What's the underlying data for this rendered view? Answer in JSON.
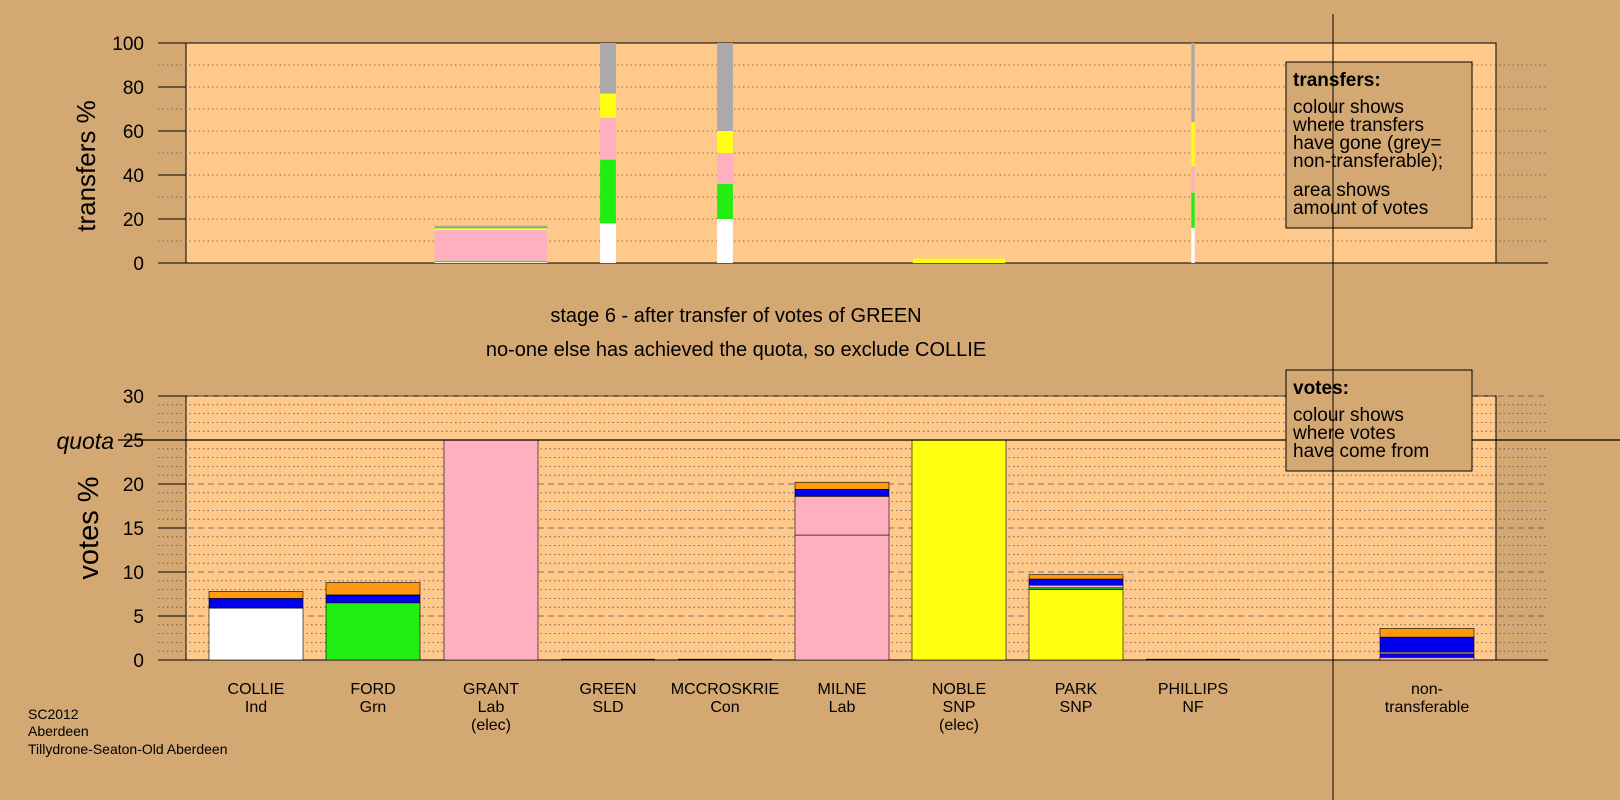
{
  "chart_data": [
    {
      "type": "bar",
      "stacked": true,
      "ylabel": "transfers %",
      "ylim": [
        0,
        100
      ],
      "yticks": [
        0,
        20,
        40,
        60,
        80,
        100
      ],
      "grid": "dotted",
      "legend": {
        "placement": "top-right",
        "title": "transfers:",
        "lines1": [
          "colour shows",
          "where transfers",
          "have gone (grey=",
          "non-transferable);"
        ],
        "lines2": [
          "area shows",
          "amount of votes"
        ]
      },
      "bars": [
        {
          "candidate": "GRANT",
          "width_share": 1.0,
          "segments": [
            {
              "color": "#ffffff",
              "value": 0.4
            },
            {
              "color": "#22ee11",
              "value": 0.6
            },
            {
              "color": "#ffb0c0",
              "value": 14.0
            },
            {
              "color": "#ffff11",
              "value": 0.8
            },
            {
              "color": "#22ee11",
              "value": 0.6
            },
            {
              "color": "#aaaaaa",
              "value": 0.6
            }
          ]
        },
        {
          "candidate": "GREEN",
          "width_share": 0.14,
          "segments": [
            {
              "color": "#ffffff",
              "value": 18
            },
            {
              "color": "#22ee11",
              "value": 29
            },
            {
              "color": "#ffb0c0",
              "value": 19
            },
            {
              "color": "#ffff11",
              "value": 11
            },
            {
              "color": "#aaaaaa",
              "value": 23
            }
          ]
        },
        {
          "candidate": "MCCROSKRIE",
          "width_share": 0.14,
          "segments": [
            {
              "color": "#ffffff",
              "value": 20
            },
            {
              "color": "#22ee11",
              "value": 16
            },
            {
              "color": "#ffb0c0",
              "value": 14
            },
            {
              "color": "#ffff11",
              "value": 10
            },
            {
              "color": "#aaaaaa",
              "value": 40
            }
          ]
        },
        {
          "candidate": "NOBLE",
          "width_share": 0.82,
          "segments": [
            {
              "color": "#ffff11",
              "value": 2.0
            }
          ]
        },
        {
          "candidate": "PHILLIPS",
          "width_share": 0.03,
          "segments": [
            {
              "color": "#ffffff",
              "value": 16
            },
            {
              "color": "#22ee11",
              "value": 16
            },
            {
              "color": "#ffb0c0",
              "value": 12
            },
            {
              "color": "#ffff11",
              "value": 20
            },
            {
              "color": "#aaaaaa",
              "value": 36
            }
          ]
        }
      ]
    },
    {
      "type": "bar",
      "stacked": true,
      "ylabel": "votes %",
      "ylim": [
        0,
        30
      ],
      "yticks": [
        0,
        5,
        10,
        15,
        20,
        25,
        30
      ],
      "quota": 25,
      "quota_label": "quota",
      "grid": "dashed",
      "legend": {
        "placement": "top-right",
        "title": "votes:",
        "lines1": [
          "colour shows",
          "where votes",
          "have come from"
        ]
      },
      "categories": [
        {
          "name": "COLLIE",
          "party": "Ind",
          "note": ""
        },
        {
          "name": "FORD",
          "party": "Grn",
          "note": ""
        },
        {
          "name": "GRANT",
          "party": "Lab",
          "note": "(elec)"
        },
        {
          "name": "GREEN",
          "party": "SLD",
          "note": ""
        },
        {
          "name": "MCCROSKRIE",
          "party": "Con",
          "note": ""
        },
        {
          "name": "MILNE",
          "party": "Lab",
          "note": ""
        },
        {
          "name": "NOBLE",
          "party": "SNP",
          "note": "(elec)"
        },
        {
          "name": "PARK",
          "party": "SNP",
          "note": ""
        },
        {
          "name": "PHILLIPS",
          "party": "NF",
          "note": ""
        },
        {
          "name": "non-",
          "party": "transferable",
          "note": ""
        }
      ],
      "series_stacks": [
        [
          {
            "color": "#ffffff",
            "value": 5.9
          },
          {
            "color": "#0000ee",
            "value": 1.1
          },
          {
            "color": "#ff9911",
            "value": 0.8
          }
        ],
        [
          {
            "color": "#22ee11",
            "value": 6.5
          },
          {
            "color": "#0000ee",
            "value": 0.9
          },
          {
            "color": "#ff9911",
            "value": 1.4
          }
        ],
        [
          {
            "color": "#ffb0c0",
            "value": 25.0
          }
        ],
        [],
        [],
        [
          {
            "color": "#ffb0c0",
            "value": 14.2
          },
          {
            "color": "#ffb0c0",
            "value": 4.4
          },
          {
            "color": "#0000ee",
            "value": 0.8
          },
          {
            "color": "#ff9911",
            "value": 0.8
          }
        ],
        [
          {
            "color": "#ffff11",
            "value": 25.0
          }
        ],
        [
          {
            "color": "#ffff11",
            "value": 8.0
          },
          {
            "color": "#22ee11",
            "value": 0.2
          },
          {
            "color": "#ffb0c0",
            "value": 0.3
          },
          {
            "color": "#0000ee",
            "value": 0.7
          },
          {
            "color": "#ff9911",
            "value": 0.5
          }
        ],
        [],
        [
          {
            "color": "#ffb0c0",
            "value": 0.3
          },
          {
            "color": "#0000ee",
            "value": 0.4
          },
          {
            "color": "#ffb0c0",
            "value": 0.2
          },
          {
            "color": "#0000ee",
            "value": 1.7
          },
          {
            "color": "#ff9911",
            "value": 1.0
          }
        ]
      ]
    }
  ],
  "captions": {
    "line1": "stage 6 - after transfer of votes of GREEN",
    "line2": "no-one else has achieved the quota, so exclude COLLIE"
  },
  "footer": {
    "line1": "SC2012",
    "line2": "Aberdeen",
    "line3": "Tillydrone-Seaton-Old Aberdeen"
  }
}
